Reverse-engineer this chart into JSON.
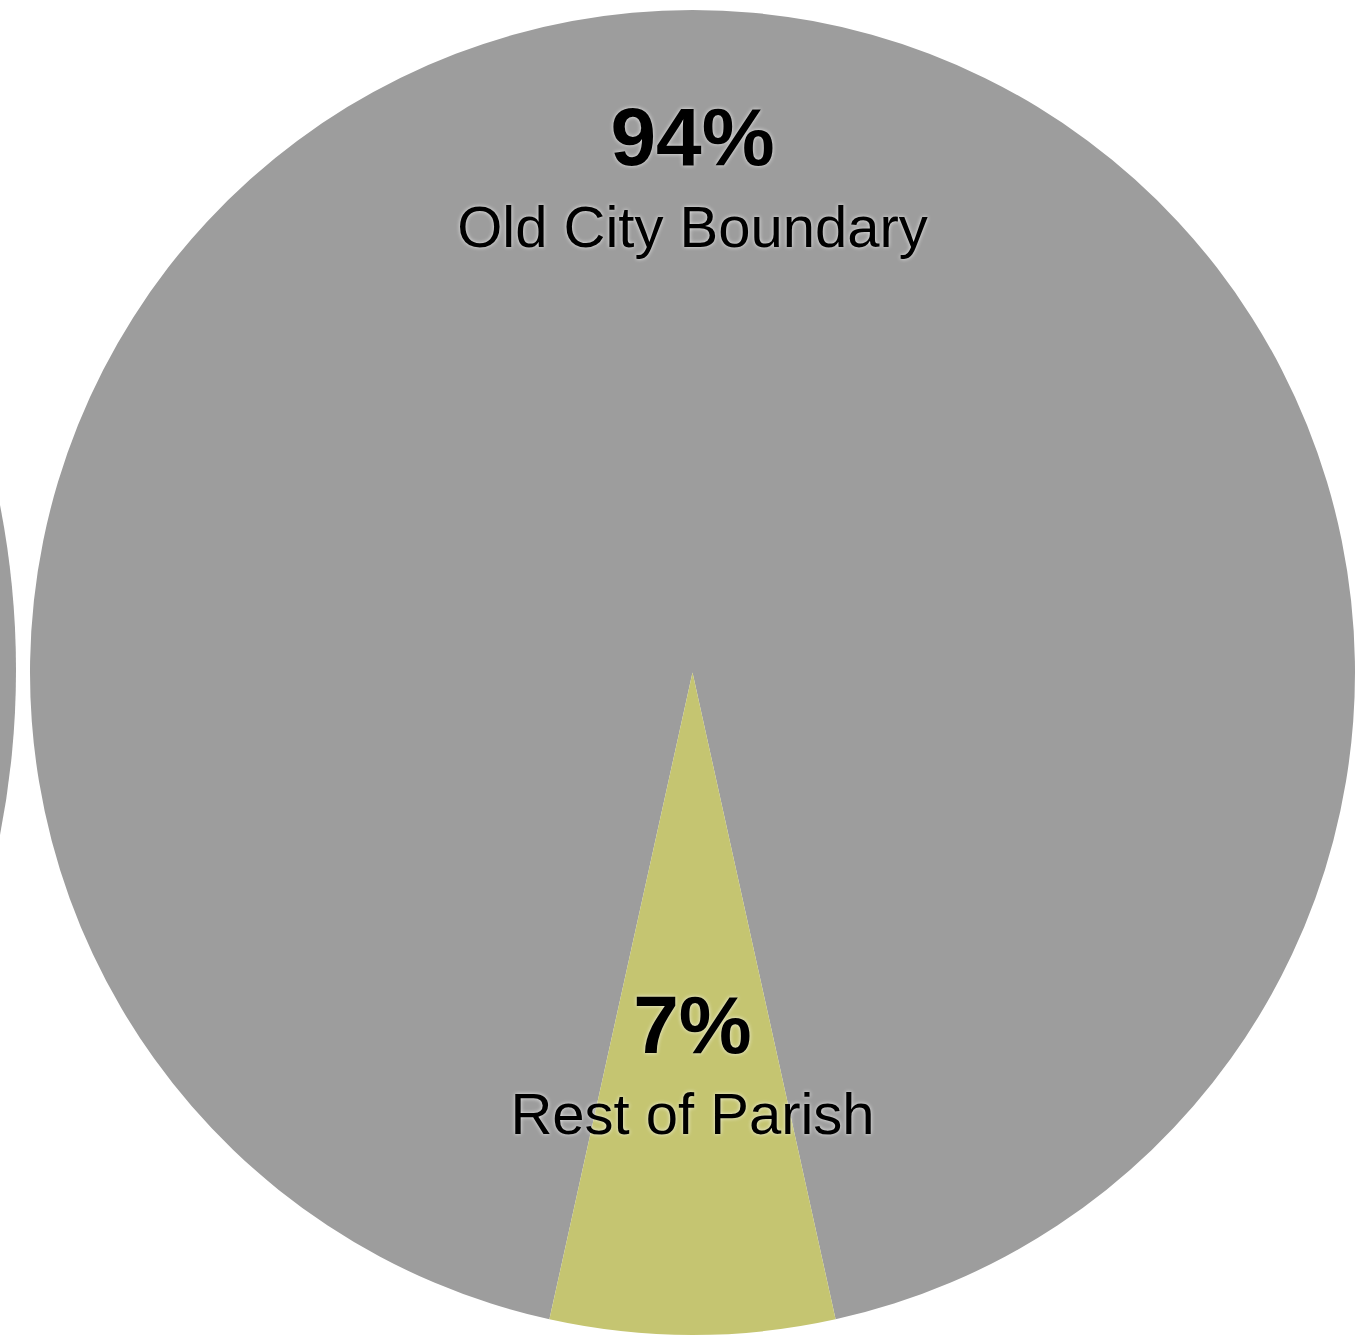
{
  "chart_data": {
    "type": "pie",
    "categories": [
      "Old City Boundary",
      "Rest of Parish"
    ],
    "values": [
      94,
      7
    ],
    "colors": [
      "#9d9d9d",
      "#c5c571"
    ],
    "value_labels": [
      "94%",
      "7%"
    ],
    "legend": false
  }
}
